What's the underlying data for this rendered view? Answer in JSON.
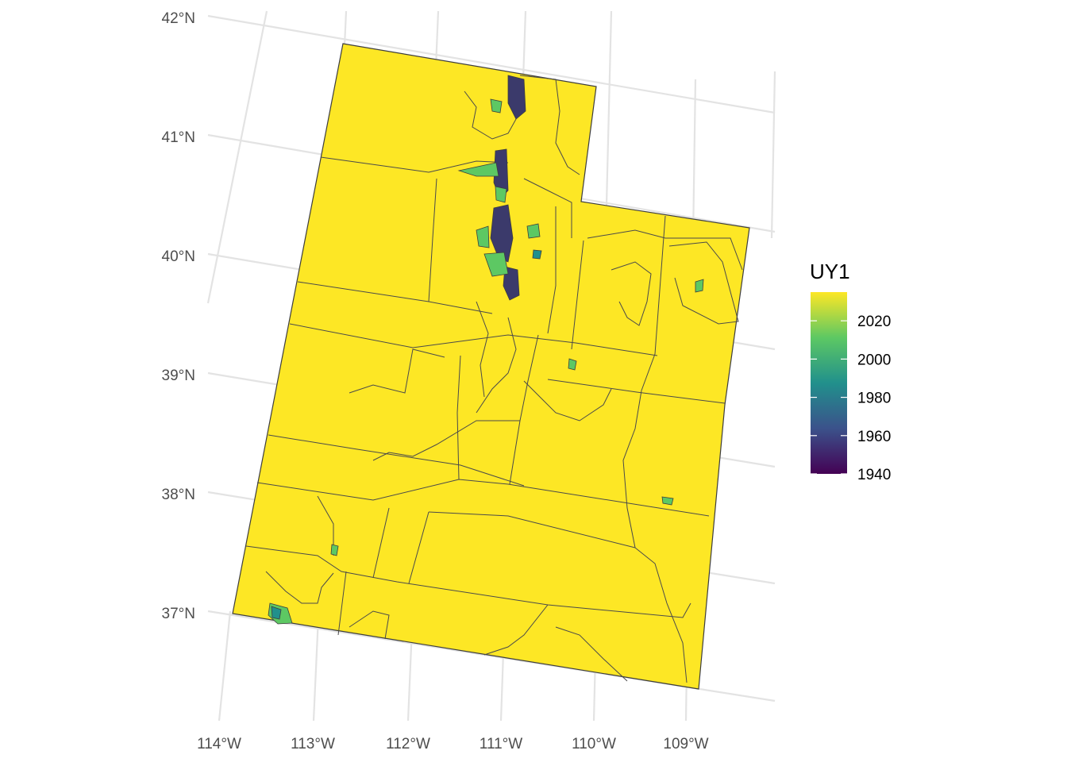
{
  "map": {
    "fill_color": "#FDE725",
    "border_color": "#3d3d3d",
    "grid_color": "#e3e3e3",
    "lat_labels": [
      "42°N",
      "41°N",
      "40°N",
      "39°N",
      "38°N",
      "37°N"
    ],
    "lon_labels": [
      "114°W",
      "113°W",
      "112°W",
      "111°W",
      "110°W",
      "109°W"
    ]
  },
  "legend": {
    "title": "UY1",
    "colors": [
      "#440154",
      "#3B528B",
      "#21908C",
      "#5DC863",
      "#FDE725"
    ],
    "min_value": 1940,
    "max_value": 2035,
    "ticks": [
      {
        "label": "2020",
        "value": 2020
      },
      {
        "label": "2000",
        "value": 2000
      },
      {
        "label": "1980",
        "value": 1980
      },
      {
        "label": "1960",
        "value": 1960
      },
      {
        "label": "1940",
        "value": 1940
      }
    ]
  },
  "regions": {
    "green_patch_color": "#5DC863",
    "teal_patch_color": "#21908C",
    "dark_patch_color": "#3B3A6B"
  }
}
